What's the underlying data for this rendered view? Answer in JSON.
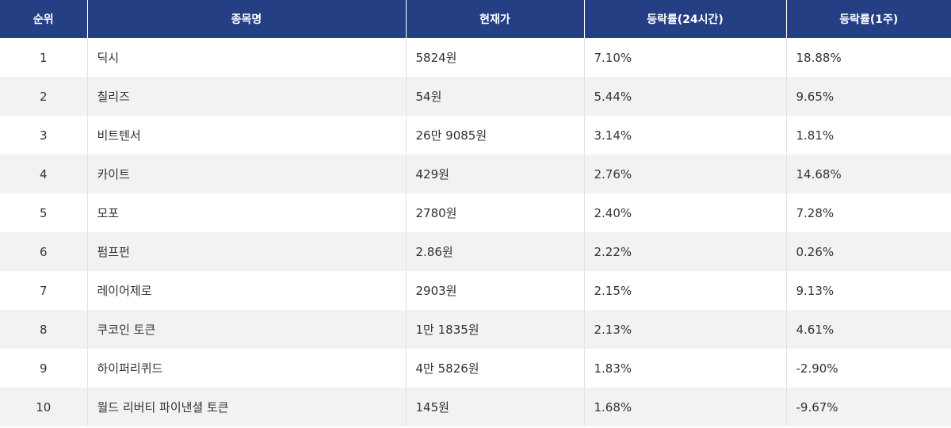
{
  "table": {
    "headers": [
      "순위",
      "종목명",
      "현재가",
      "등락률(24시간)",
      "등락률(1주)"
    ],
    "rows": [
      {
        "rank": "1",
        "name": "딕시",
        "price": "5824원",
        "change_24h": "7.10%",
        "change_1w": "18.88%"
      },
      {
        "rank": "2",
        "name": "칠리즈",
        "price": "54원",
        "change_24h": "5.44%",
        "change_1w": "9.65%"
      },
      {
        "rank": "3",
        "name": "비트텐서",
        "price": "26만 9085원",
        "change_24h": "3.14%",
        "change_1w": "1.81%"
      },
      {
        "rank": "4",
        "name": "카이트",
        "price": "429원",
        "change_24h": "2.76%",
        "change_1w": "14.68%"
      },
      {
        "rank": "5",
        "name": "모포",
        "price": "2780원",
        "change_24h": "2.40%",
        "change_1w": "7.28%"
      },
      {
        "rank": "6",
        "name": "펌프펀",
        "price": "2.86원",
        "change_24h": "2.22%",
        "change_1w": "0.26%"
      },
      {
        "rank": "7",
        "name": "레이어제로",
        "price": "2903원",
        "change_24h": "2.15%",
        "change_1w": "9.13%"
      },
      {
        "rank": "8",
        "name": "쿠코인 토큰",
        "price": "1만 1835원",
        "change_24h": "2.13%",
        "change_1w": "4.61%"
      },
      {
        "rank": "9",
        "name": "하이퍼리퀴드",
        "price": "4만 5826원",
        "change_24h": "1.83%",
        "change_1w": "-2.90%"
      },
      {
        "rank": "10",
        "name": "월드 리버티 파이낸셜 토큰",
        "price": "145원",
        "change_24h": "1.68%",
        "change_1w": "-9.67%"
      }
    ]
  },
  "colors": {
    "header_bg": "#243f84",
    "header_text": "#ffffff",
    "row_alt_bg": "#f2f2f2",
    "text": "#333333"
  }
}
